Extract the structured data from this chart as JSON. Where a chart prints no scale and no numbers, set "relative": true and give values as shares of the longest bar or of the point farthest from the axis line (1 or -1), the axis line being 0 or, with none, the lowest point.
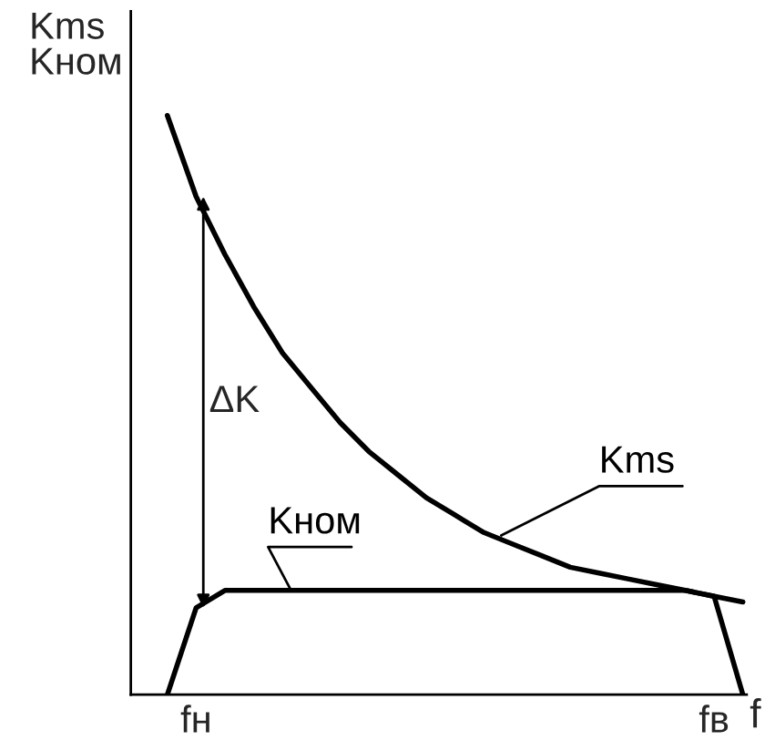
{
  "chart_data": {
    "type": "line",
    "relative": true,
    "xlabel": "f",
    "ylabel": "Kms\nKном",
    "categories": [
      null,
      "fн",
      null,
      null,
      null,
      null,
      null,
      null,
      null,
      null,
      null,
      null,
      null,
      null,
      null,
      null,
      null,
      null,
      null,
      "fв",
      null
    ],
    "series": [
      {
        "name": "Kms",
        "color": "#000000",
        "values": [
          1.0,
          0.86,
          0.76,
          0.67,
          0.59,
          0.53,
          0.47,
          0.42,
          0.38,
          0.34,
          0.31,
          0.28,
          0.26,
          0.24,
          0.22,
          0.21,
          0.2,
          0.19,
          0.18,
          0.17,
          0.16
        ]
      },
      {
        "name": "Kном",
        "color": "#000000",
        "values": [
          0.0,
          0.15,
          0.18,
          0.18,
          0.18,
          0.18,
          0.18,
          0.18,
          0.18,
          0.18,
          0.18,
          0.18,
          0.18,
          0.18,
          0.18,
          0.18,
          0.18,
          0.18,
          0.18,
          0.17,
          0.0
        ]
      }
    ],
    "annotations": [
      "ΔK"
    ]
  }
}
